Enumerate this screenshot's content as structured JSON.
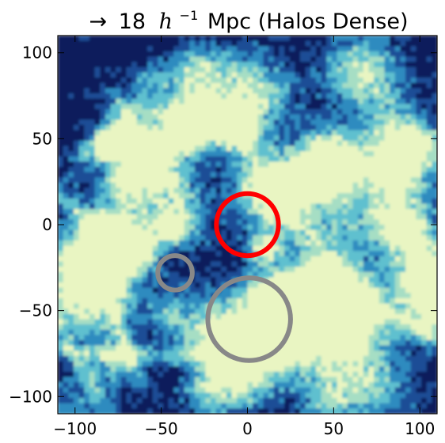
{
  "chart_data": {
    "type": "heatmap",
    "title": {
      "arrow": "→",
      "value": "18",
      "h": "h",
      "h_exp": "−1",
      "rest": "Mpc (Halos Dense)"
    },
    "xlabel": "",
    "ylabel": "",
    "xlim": [
      -110,
      110
    ],
    "ylim": [
      -110,
      110
    ],
    "x_ticks": [
      -100,
      -50,
      0,
      50,
      100
    ],
    "y_ticks": [
      -100,
      -50,
      0,
      50,
      100
    ],
    "x_tick_labels": [
      "−100",
      "−50",
      "0",
      "50",
      "100"
    ],
    "y_tick_labels": [
      "−100",
      "−50",
      "0",
      "50",
      "100"
    ],
    "grid": false,
    "colormap": [
      "#0b1e5b",
      "#1f4e96",
      "#2f8bbf",
      "#5fc0cf",
      "#a6dec4",
      "#e9f5c2"
    ],
    "circles": [
      {
        "name": "",
        "cx": 0,
        "cy": 0,
        "r": 18,
        "color": "#ff0000"
      },
      {
        "name": "",
        "cx": -42,
        "cy": -28,
        "r": 10,
        "color": "#888888"
      },
      {
        "name": "",
        "cx": 1,
        "cy": -55,
        "r": 24,
        "color": "#888888"
      }
    ]
  }
}
